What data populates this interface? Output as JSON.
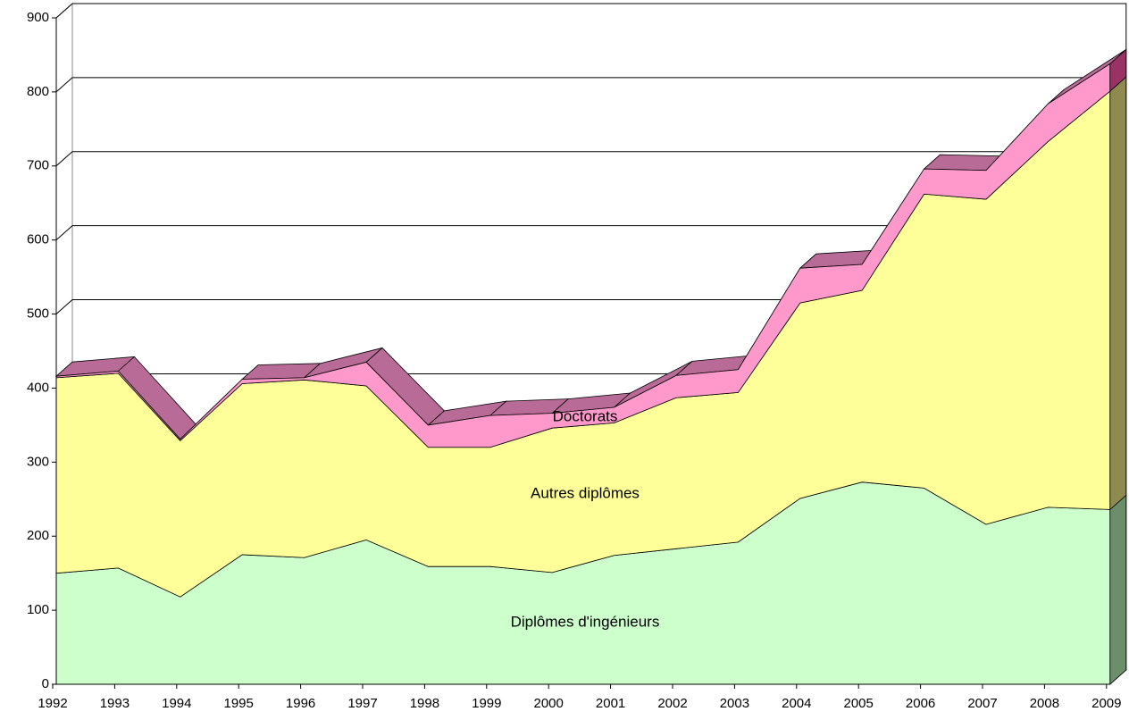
{
  "chart_data": {
    "type": "area",
    "stacked": true,
    "categories": [
      "1992",
      "1993",
      "1994",
      "1995",
      "1996",
      "1997",
      "1998",
      "1999",
      "2000",
      "2001",
      "2002",
      "2003",
      "2004",
      "2005",
      "2006",
      "2007",
      "2008",
      "2009"
    ],
    "series": [
      {
        "name": "Diplômes d'ingénieurs",
        "color": "#ccffcc",
        "values": [
          150,
          157,
          118,
          175,
          171,
          195,
          159,
          159,
          151,
          174,
          183,
          192,
          251,
          273,
          265,
          216,
          239,
          236
        ]
      },
      {
        "name": "Autres diplômes",
        "color": "#ffff99",
        "values": [
          264,
          263,
          211,
          231,
          240,
          208,
          161,
          161,
          195,
          179,
          204,
          202,
          264,
          259,
          397,
          439,
          494,
          565
        ]
      },
      {
        "name": "Doctorats",
        "color": "#ff99cc",
        "values": [
          2,
          3,
          2,
          6,
          3,
          32,
          30,
          43,
          20,
          21,
          30,
          31,
          47,
          35,
          34,
          39,
          51,
          37
        ]
      }
    ],
    "ylim": [
      0,
      900
    ],
    "yticks": [
      0,
      100,
      200,
      300,
      400,
      500,
      600,
      700,
      800,
      900
    ],
    "grid": true
  }
}
